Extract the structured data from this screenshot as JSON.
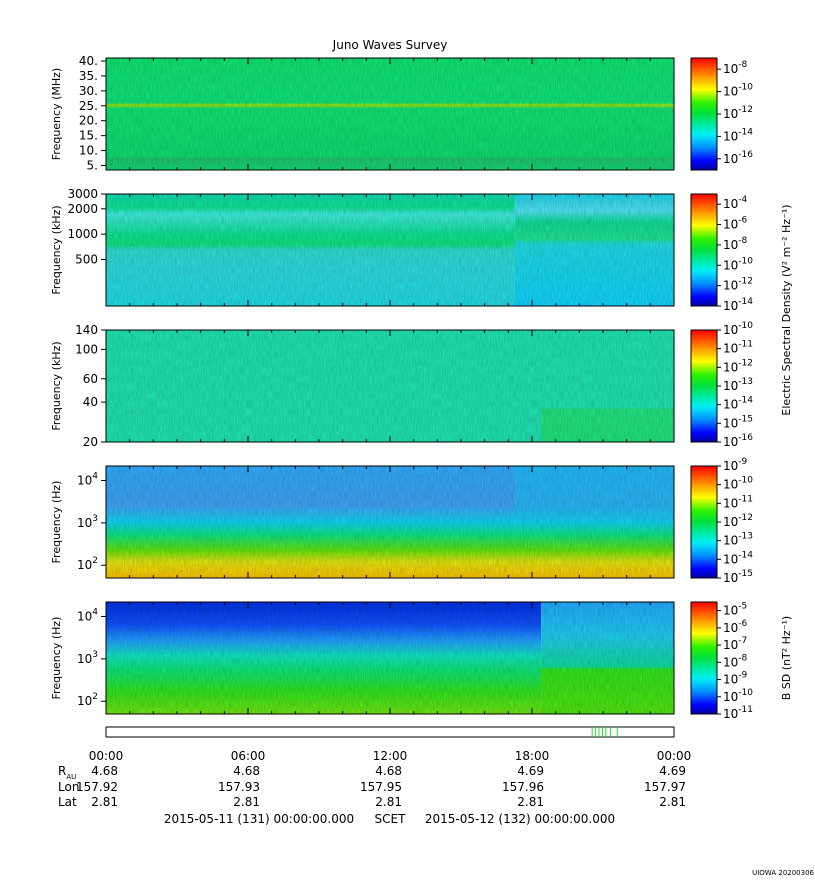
{
  "chart_data": {
    "type": "heatmap",
    "title": "Juno Waves Survey",
    "panels": [
      {
        "ylabel": "Frequency (MHz)",
        "y_scale": "linear",
        "ylim": [
          3.5,
          41
        ],
        "yticks": [
          {
            "v": 5,
            "label": "5."
          },
          {
            "v": 10,
            "label": "10."
          },
          {
            "v": 15,
            "label": "15."
          },
          {
            "v": 20,
            "label": "20."
          },
          {
            "v": 25,
            "label": "25."
          },
          {
            "v": 30,
            "label": "30."
          },
          {
            "v": 35,
            "label": "35."
          },
          {
            "v": 40,
            "label": "40."
          }
        ],
        "colorbar": {
          "label": "",
          "scale": "log",
          "range_exp": [
            -17,
            -7
          ],
          "ticks": [
            {
              "exp": "-8"
            },
            {
              "exp": "-10"
            },
            {
              "exp": "-12"
            },
            {
              "exp": "-14"
            },
            {
              "exp": "-16"
            }
          ]
        },
        "pattern": "hf"
      },
      {
        "ylabel": "Frequency (kHz)",
        "y_scale": "log",
        "ylim": [
          140,
          3000
        ],
        "yticks": [
          {
            "v": 500,
            "label": "500"
          },
          {
            "v": 1000,
            "label": "1000"
          },
          {
            "v": 2000,
            "label": "2000"
          },
          {
            "v": 3000,
            "label": "3000"
          }
        ],
        "colorbar": {
          "label": "Electric Spectral Density (V² m⁻² Hz⁻¹)",
          "scale": "log",
          "range_exp": [
            -14,
            -3
          ],
          "ticks": [
            {
              "exp": "-4"
            },
            {
              "exp": "-6"
            },
            {
              "exp": "-8"
            },
            {
              "exp": "-10"
            },
            {
              "exp": "-12"
            },
            {
              "exp": "-14"
            }
          ]
        },
        "pattern": "mf"
      },
      {
        "ylabel": "Frequency (kHz)",
        "y_scale": "log",
        "ylim": [
          20,
          140
        ],
        "yticks": [
          {
            "v": 20,
            "label": "20"
          },
          {
            "v": 40,
            "label": "40"
          },
          {
            "v": 60,
            "label": "60"
          },
          {
            "v": 100,
            "label": "100"
          },
          {
            "v": 140,
            "label": "140"
          }
        ],
        "colorbar": {
          "label": "",
          "scale": "log",
          "range_exp": [
            -16,
            -10
          ],
          "ticks": [
            {
              "exp": "-10"
            },
            {
              "exp": "-11"
            },
            {
              "exp": "-12"
            },
            {
              "exp": "-13"
            },
            {
              "exp": "-14"
            },
            {
              "exp": "-15"
            },
            {
              "exp": "-16"
            }
          ]
        },
        "pattern": "lf"
      },
      {
        "ylabel": "Frequency (Hz)",
        "y_scale": "log",
        "ylim": [
          50,
          22000
        ],
        "yticks": [
          {
            "v": 100,
            "label": "10",
            "exp": "2"
          },
          {
            "v": 1000,
            "label": "10",
            "exp": "3"
          },
          {
            "v": 10000,
            "label": "10",
            "exp": "4"
          }
        ],
        "colorbar": {
          "label": "",
          "scale": "log",
          "range_exp": [
            -15,
            -9
          ],
          "ticks": [
            {
              "exp": "-9"
            },
            {
              "exp": "-10"
            },
            {
              "exp": "-11"
            },
            {
              "exp": "-12"
            },
            {
              "exp": "-13"
            },
            {
              "exp": "-14"
            },
            {
              "exp": "-15"
            }
          ]
        },
        "pattern": "elf"
      },
      {
        "ylabel": "Frequency (Hz)",
        "y_scale": "log",
        "ylim": [
          50,
          22000
        ],
        "yticks": [
          {
            "v": 100,
            "label": "10",
            "exp": "2"
          },
          {
            "v": 1000,
            "label": "10",
            "exp": "3"
          },
          {
            "v": 10000,
            "label": "10",
            "exp": "4"
          }
        ],
        "colorbar": {
          "label": "B SD (nT² Hz⁻¹)",
          "scale": "log",
          "range_exp": [
            -11,
            -4.5
          ],
          "ticks": [
            {
              "exp": "-5"
            },
            {
              "exp": "-6"
            },
            {
              "exp": "-7"
            },
            {
              "exp": "-8"
            },
            {
              "exp": "-9"
            },
            {
              "exp": "-10"
            },
            {
              "exp": "-11"
            }
          ]
        },
        "pattern": "mag"
      }
    ],
    "time_axis": {
      "labels": [
        "00:00",
        "06:00",
        "12:00",
        "18:00",
        "00:00"
      ],
      "ephemeris": [
        {
          "name": "R",
          "sub": "AU",
          "values": [
            "4.68",
            "4.68",
            "4.68",
            "4.69",
            "4.69"
          ]
        },
        {
          "name": "Lon",
          "sub": "",
          "values": [
            "157.92",
            "157.93",
            "157.95",
            "157.96",
            "157.97"
          ]
        },
        {
          "name": "Lat",
          "sub": "",
          "values": [
            "2.81",
            "2.81",
            "2.81",
            "2.81",
            "2.81"
          ]
        }
      ]
    },
    "footer": {
      "start": "2015-05-11 (131) 00:00:00.000",
      "mid": "SCET",
      "end": "2015-05-12 (132) 00:00:00.000"
    },
    "credit": "UIOWA 20200306"
  }
}
